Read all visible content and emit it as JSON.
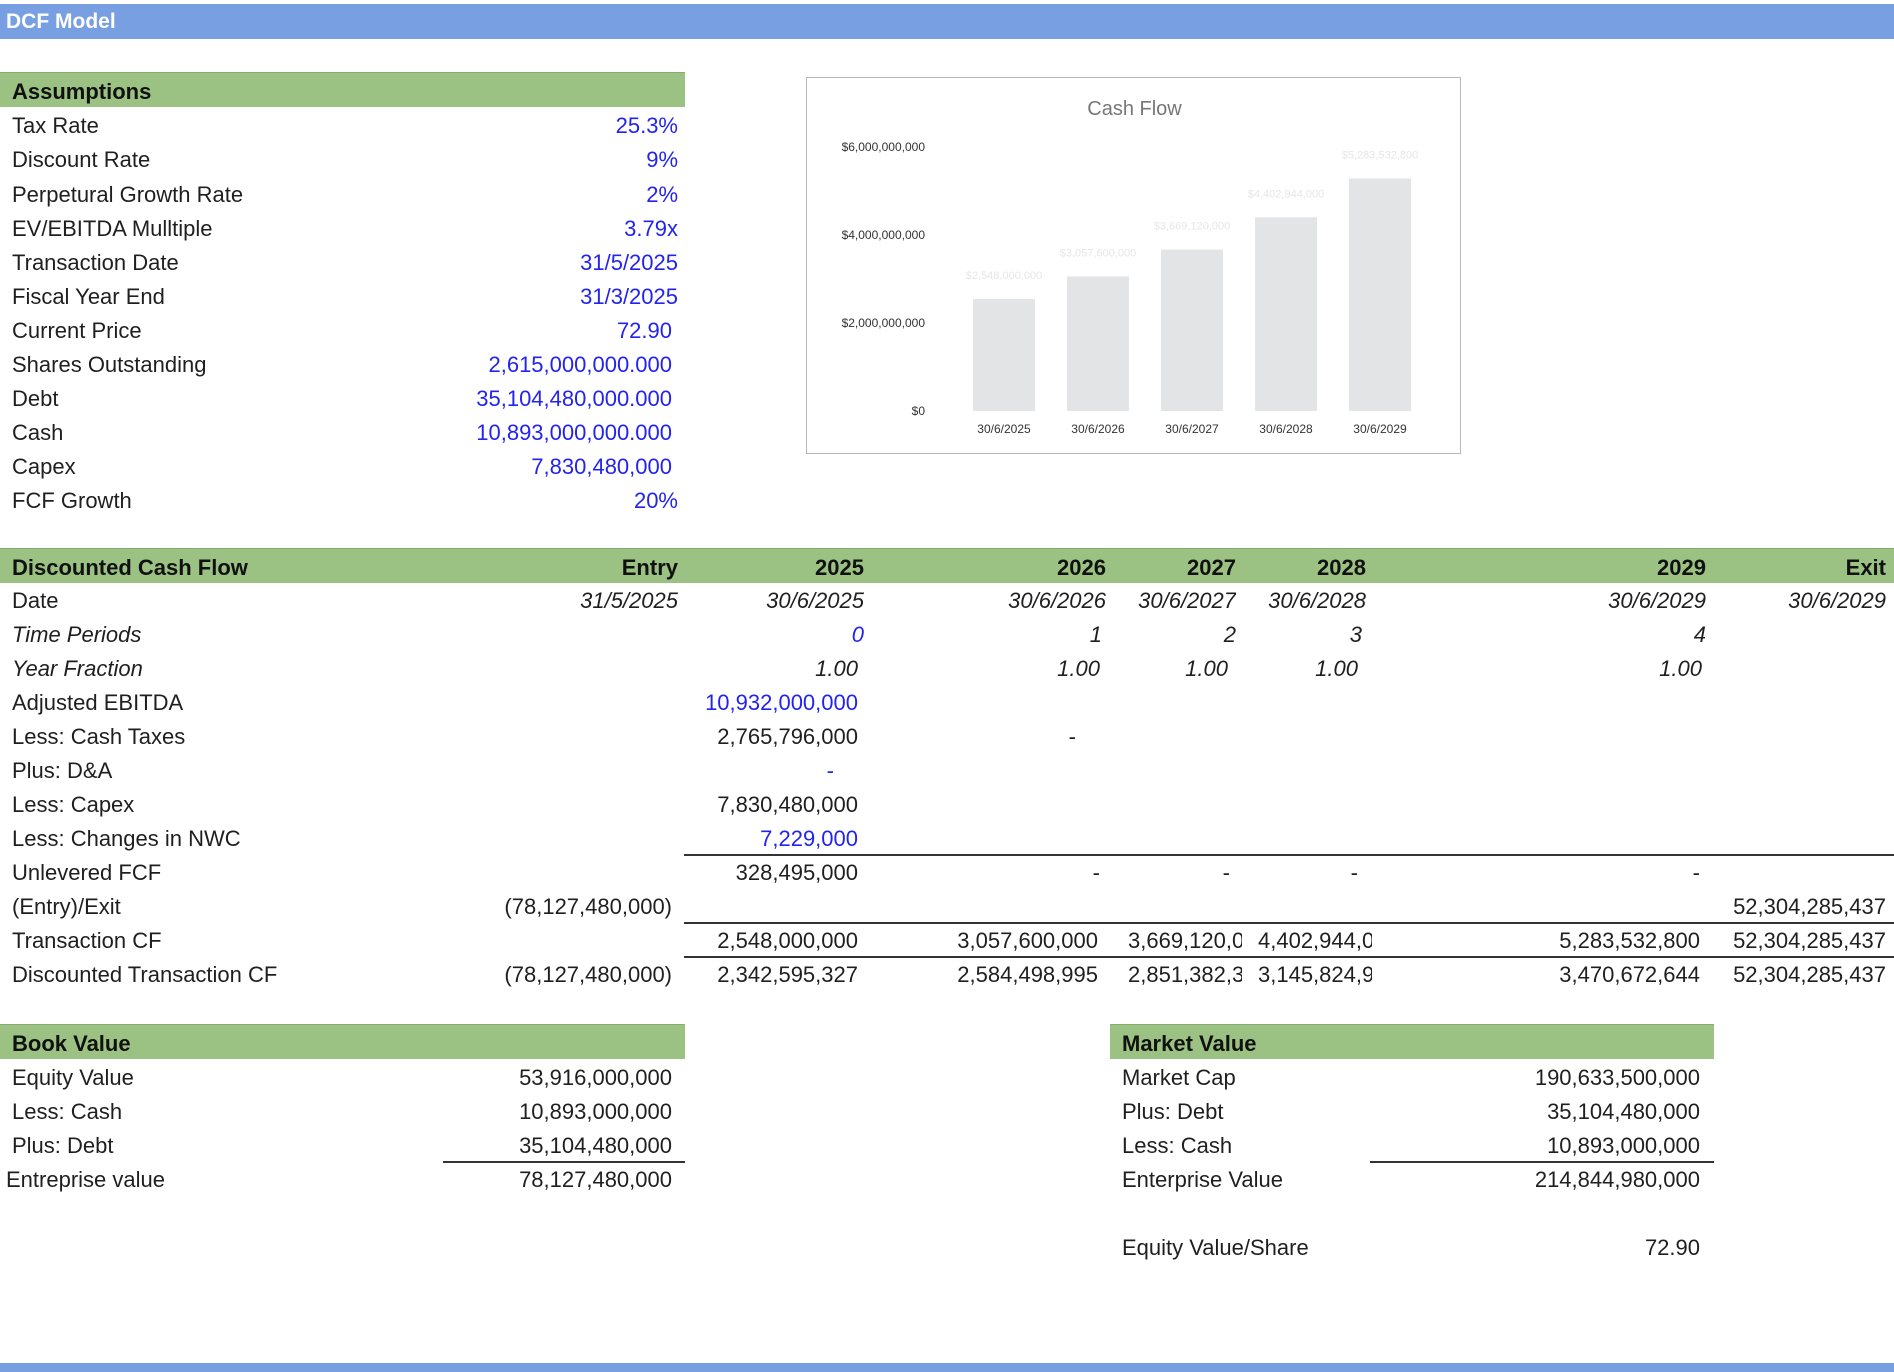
{
  "app": {
    "title": "DCF Model"
  },
  "assumptions": {
    "header": "Assumptions",
    "rows": [
      {
        "label": "Tax Rate",
        "value": "25.3%"
      },
      {
        "label": "Discount Rate",
        "value": "9%"
      },
      {
        "label": "Perpetural Growth Rate",
        "value": "2%"
      },
      {
        "label": "EV/EBITDA Mulltiple",
        "value": "3.79x"
      },
      {
        "label": "Transaction Date",
        "value": "31/5/2025"
      },
      {
        "label": "Fiscal Year End",
        "value": "31/3/2025"
      },
      {
        "label": "Current Price",
        "value": "72.90"
      },
      {
        "label": "Shares Outstanding",
        "value": "2,615,000,000.000"
      },
      {
        "label": "Debt",
        "value": "35,104,480,000.000"
      },
      {
        "label": "Cash",
        "value": "10,893,000,000.000"
      },
      {
        "label": "Capex",
        "value": "7,830,480,000"
      },
      {
        "label": "FCF Growth",
        "value": "20%"
      }
    ]
  },
  "chart_data": {
    "type": "bar",
    "title": "Cash Flow",
    "categories": [
      "30/6/2025",
      "30/6/2026",
      "30/6/2027",
      "30/6/2028",
      "30/6/2029"
    ],
    "values": [
      2548000000,
      3057600000,
      3669120000,
      4402944000,
      5283532800
    ],
    "data_labels": [
      "$2,548,000,000",
      "$3,057,600,000",
      "$3,669,120,000",
      "$4,402,944,000",
      "$5,283,532,800"
    ],
    "y_ticks": [
      0,
      2000000000,
      4000000000,
      6000000000
    ],
    "y_tick_labels": [
      "$0",
      "$2,000,000,000",
      "$4,000,000,000",
      "$6,000,000,000"
    ],
    "ylim": [
      0,
      6000000000
    ],
    "bar_color": "#e3e4e6",
    "grid": false
  },
  "dcf": {
    "header": "Discounted Cash Flow",
    "columns": [
      "Entry",
      "2025",
      "2026",
      "2027",
      "2028",
      "2029",
      "Exit"
    ],
    "rows": [
      {
        "label": "Date",
        "cells": [
          "31/5/2025",
          "30/6/2025",
          "30/6/2026",
          "30/6/2027",
          "30/6/2028",
          "30/6/2029",
          "30/6/2029"
        ]
      },
      {
        "label": "Time Periods",
        "cells": [
          "",
          "0",
          "1",
          "2",
          "3",
          "4",
          ""
        ]
      },
      {
        "label": "Year Fraction",
        "cells": [
          "",
          "1.00",
          "1.00",
          "1.00",
          "1.00",
          "1.00",
          ""
        ]
      },
      {
        "label": "Adjusted EBITDA",
        "cells": [
          "",
          "10,932,000,000",
          "",
          "",
          "",
          "",
          ""
        ]
      },
      {
        "label": "Less: Cash Taxes",
        "cells": [
          "",
          "2,765,796,000",
          "-",
          "",
          "",
          "",
          ""
        ]
      },
      {
        "label": "Plus: D&A",
        "cells": [
          "",
          "-",
          "",
          "",
          "",
          "",
          ""
        ]
      },
      {
        "label": "Less: Capex",
        "cells": [
          "",
          "7,830,480,000",
          "",
          "",
          "",
          "",
          ""
        ]
      },
      {
        "label": "Less: Changes in NWC",
        "cells": [
          "",
          "7,229,000",
          "",
          "",
          "",
          "",
          ""
        ]
      },
      {
        "label": "Unlevered FCF",
        "cells": [
          "",
          "328,495,000",
          "-",
          "-",
          "-",
          "-",
          ""
        ]
      },
      {
        "label": "(Entry)/Exit",
        "cells": [
          "(78,127,480,000)",
          "",
          "",
          "",
          "",
          "",
          "52,304,285,437"
        ]
      },
      {
        "label": "Transaction CF",
        "cells": [
          "",
          "2,548,000,000",
          "3,057,600,000",
          "3,669,120,0",
          "4,402,944,0",
          "5,283,532,800",
          "52,304,285,437"
        ]
      },
      {
        "label": "Discounted Transaction CF",
        "cells": [
          "(78,127,480,000)",
          "2,342,595,327",
          "2,584,498,995",
          "2,851,382,3",
          "3,145,824,9",
          "3,470,672,644",
          "52,304,285,437"
        ]
      }
    ]
  },
  "book_value": {
    "header": "Book Value",
    "rows": [
      {
        "label": "Equity Value",
        "value": "53,916,000,000"
      },
      {
        "label": "Less: Cash",
        "value": "10,893,000,000"
      },
      {
        "label": "Plus: Debt",
        "value": "35,104,480,000"
      },
      {
        "label": "Entreprise value",
        "value": "78,127,480,000"
      }
    ]
  },
  "market_value": {
    "header": "Market Value",
    "rows": [
      {
        "label": "Market Cap",
        "value": "190,633,500,000"
      },
      {
        "label": "Plus: Debt",
        "value": "35,104,480,000"
      },
      {
        "label": "Less: Cash",
        "value": "10,893,000,000"
      },
      {
        "label": "Enterprise Value",
        "value": "214,844,980,000"
      },
      {
        "label": "Equity Value/Share",
        "value": "72.90"
      }
    ]
  }
}
